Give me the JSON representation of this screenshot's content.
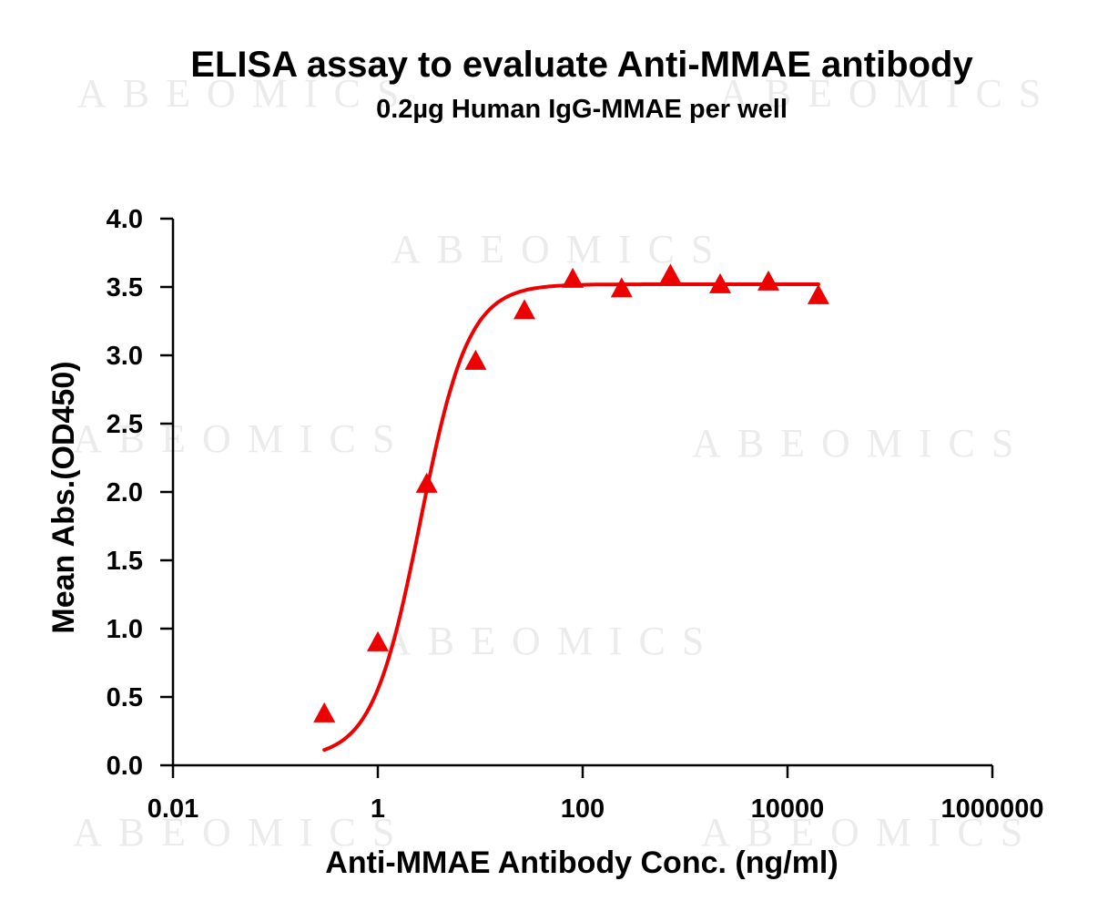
{
  "chart_data": {
    "type": "scatter",
    "title": "ELISA assay to evaluate Anti-MMAE antibody",
    "subtitle": "0.2µg Human IgG-MMAE per well",
    "xlabel": "Anti-MMAE Antibody Conc. (ng/ml)",
    "ylabel": "Mean Abs.(OD450)",
    "x_scale": "log",
    "xlim": [
      0.01,
      1000000
    ],
    "ylim": [
      0,
      4.0
    ],
    "x_ticks": [
      0.01,
      1,
      100,
      10000,
      1000000
    ],
    "x_tick_labels": [
      "0.01",
      "1",
      "100",
      "10000",
      "1000000"
    ],
    "y_ticks": [
      0,
      0.5,
      1.0,
      1.5,
      2.0,
      2.5,
      3.0,
      3.5,
      4.0
    ],
    "y_tick_labels": [
      "0.0",
      "0.5",
      "1.0",
      "1.5",
      "2.0",
      "2.5",
      "3.0",
      "3.5",
      "4.0"
    ],
    "grid": false,
    "series": [
      {
        "color": "#ee0000",
        "marker": "triangle",
        "fit": "4PL",
        "x": [
          0.3,
          1,
          3,
          9,
          27,
          80,
          240,
          720,
          2200,
          6500,
          20000
        ],
        "y": [
          0.37,
          0.89,
          2.05,
          2.95,
          3.32,
          3.55,
          3.48,
          3.58,
          3.51,
          3.53,
          3.43
        ]
      }
    ],
    "fit_curve": {
      "bottom": 0.05,
      "top": 3.52,
      "ec50": 2.6,
      "hill": 1.85
    },
    "watermark": "ABEOMICS"
  }
}
